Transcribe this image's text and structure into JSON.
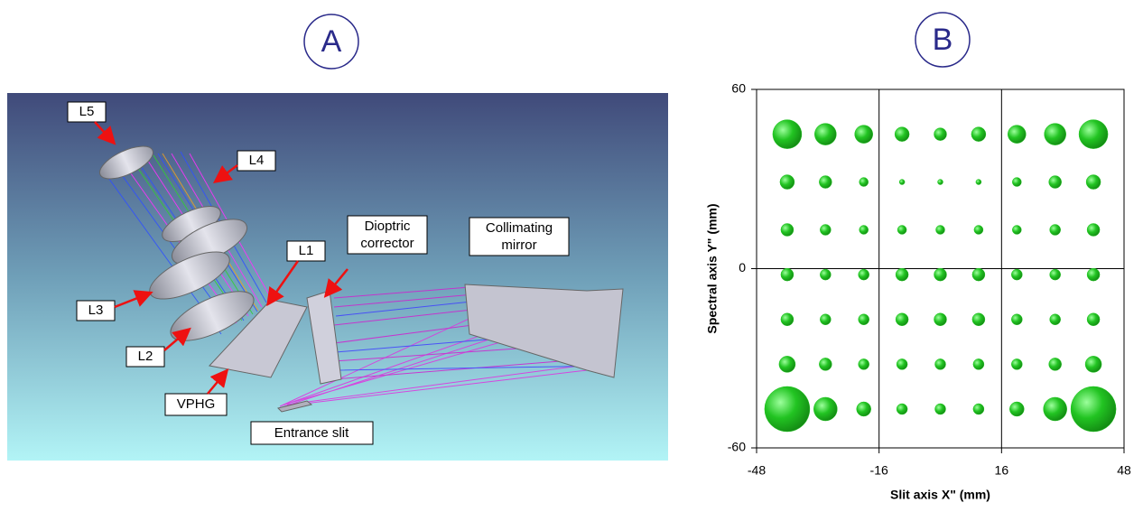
{
  "panels": [
    "A",
    "B"
  ],
  "illustration": {
    "labels": {
      "l5": "L5",
      "l4": "L4",
      "l1": "L1",
      "l3": "L3",
      "l2": "L2",
      "vphg": "VPHG",
      "slit": "Entrance slit",
      "corrector": [
        "Dioptric",
        "corrector"
      ],
      "mirror": [
        "Collimating",
        "mirror"
      ]
    }
  },
  "chart_data": {
    "type": "scatter",
    "x_label": "Slit axis X\" (mm)",
    "y_label": "Spectral axis Y\" (mm)",
    "xlim": [
      -48,
      48
    ],
    "xticks": [
      -48,
      -16,
      16,
      48
    ],
    "ylim": [
      -60,
      60
    ],
    "yticks": [
      -60,
      0,
      60
    ],
    "grid": true,
    "color": "#22c422",
    "x": [
      -40,
      -30,
      -20,
      -10,
      0,
      10,
      20,
      30,
      40,
      -40,
      -30,
      -20,
      -10,
      0,
      10,
      20,
      30,
      40,
      -40,
      -30,
      -20,
      -10,
      0,
      10,
      20,
      30,
      40,
      -40,
      -30,
      -20,
      -10,
      0,
      10,
      20,
      30,
      40,
      -40,
      -30,
      -20,
      -10,
      0,
      10,
      20,
      30,
      40,
      -40,
      -30,
      -20,
      -10,
      0,
      10,
      20,
      30,
      40,
      -40,
      -30,
      -20,
      -10,
      0,
      10,
      20,
      30,
      40
    ],
    "values": [
      45,
      45,
      45,
      45,
      45,
      45,
      45,
      45,
      45,
      29,
      29,
      29,
      29,
      29,
      29,
      29,
      29,
      29,
      13,
      13,
      13,
      13,
      13,
      13,
      13,
      13,
      13,
      -2,
      -2,
      -2,
      -2,
      -2,
      -2,
      -2,
      -2,
      -2,
      -17,
      -17,
      -17,
      -17,
      -17,
      -17,
      -17,
      -17,
      -17,
      -32,
      -32,
      -32,
      -32,
      -32,
      -32,
      -32,
      -32,
      -32,
      -47,
      -47,
      -47,
      -47,
      -47,
      -47,
      -47,
      -47,
      -47
    ],
    "sizes": [
      16,
      12,
      10,
      8,
      7,
      8,
      10,
      12,
      16,
      8,
      7,
      5,
      3,
      3,
      3,
      5,
      7,
      8,
      7,
      6,
      5,
      5,
      5,
      5,
      5,
      6,
      7,
      7,
      6,
      6,
      7,
      7,
      7,
      6,
      6,
      7,
      7,
      6,
      6,
      7,
      7,
      7,
      6,
      6,
      7,
      9,
      7,
      6,
      6,
      6,
      6,
      6,
      7,
      9,
      25,
      13,
      8,
      6,
      6,
      6,
      8,
      13,
      25
    ]
  }
}
